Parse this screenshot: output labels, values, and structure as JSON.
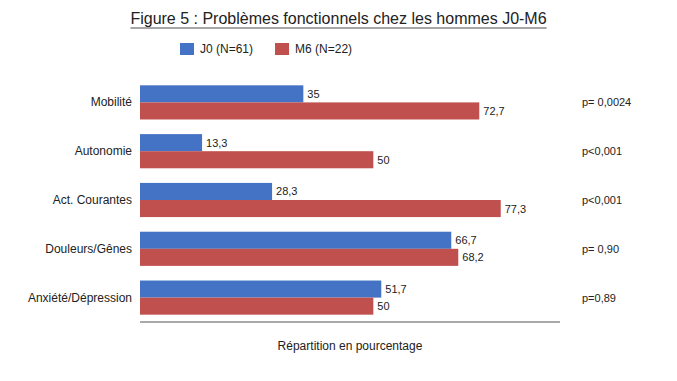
{
  "chart_data": {
    "type": "bar",
    "orientation": "horizontal",
    "title": "Figure 5 : Problèmes fonctionnels chez les hommes J0-M6",
    "categories": [
      "Mobilité",
      "Autonomie",
      "Act. Courantes",
      "Douleurs/Gênes",
      "Anxiété/Dépression"
    ],
    "series": [
      {
        "name": "J0 (N=61)",
        "color": "#4472C4",
        "values": [
          35,
          13.3,
          28.3,
          66.7,
          51.7
        ],
        "value_labels": [
          "35",
          "13,3",
          "28,3",
          "66,7",
          "51,7"
        ]
      },
      {
        "name": "M6 (N=22)",
        "color": "#C0504D",
        "values": [
          72.7,
          50,
          77.3,
          68.2,
          50
        ],
        "value_labels": [
          "72,7",
          "50",
          "77,3",
          "68,2",
          "50"
        ]
      }
    ],
    "annotations": [
      "p= 0,0024",
      "p<0,001",
      "p<0,001",
      "p= 0,90",
      "p=0,89"
    ],
    "xlabel": "Répartition en pourcentage",
    "xlim": [
      0,
      90
    ],
    "data_labels": true,
    "tick_labels": "y",
    "grid": false,
    "legend": "top"
  }
}
